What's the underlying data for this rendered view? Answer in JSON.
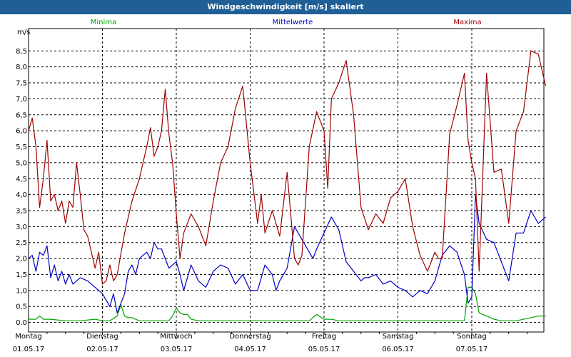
{
  "window": {
    "title": "Windgeschwindigkeit [m/s] skaliert"
  },
  "chart_data": {
    "type": "line",
    "title": "Windgeschwindigkeit [m/s] skaliert",
    "ylabel": "m/s",
    "ylim": [
      -0.3,
      9.2
    ],
    "grid": true,
    "legend_placement": "top",
    "y_ticks": [
      "0.0",
      "0,5",
      "1,0",
      "1,5",
      "2,0",
      "2,5",
      "3,0",
      "3,5",
      "4,0",
      "4,5",
      "5,0",
      "5,5",
      "6,0",
      "6,5",
      "7,0",
      "7,5",
      "8,0",
      "8,5"
    ],
    "y_tick_values": [
      0,
      0.5,
      1,
      1.5,
      2,
      2.5,
      3,
      3.5,
      4,
      4.5,
      5,
      5.5,
      6,
      6.5,
      7,
      7.5,
      8,
      8.5
    ],
    "x_ticks": [
      {
        "day": "Montag",
        "date": "01.05.17"
      },
      {
        "day": "Dienstag",
        "date": "02.05.17"
      },
      {
        "day": "Mittwoch",
        "date": "03.05.17"
      },
      {
        "day": "Donnerstag",
        "date": "04.05.17"
      },
      {
        "day": "Freitag",
        "date": "05.05.17"
      },
      {
        "day": "Samstag",
        "date": "06.05.17"
      },
      {
        "day": "Sonntag",
        "date": "07.05.17"
      }
    ],
    "x_range_days": [
      0,
      7
    ],
    "series": [
      {
        "name": "Minima",
        "color": "#00a000",
        "x": [
          0,
          0.05,
          0.1,
          0.15,
          0.2,
          0.3,
          0.5,
          0.7,
          0.9,
          1.0,
          1.1,
          1.2,
          1.25,
          1.3,
          1.35,
          1.4,
          1.5,
          1.6,
          1.7,
          1.8,
          1.9,
          1.95,
          2.0,
          2.05,
          2.1,
          2.15,
          2.2,
          2.3,
          2.4,
          2.6,
          2.8,
          3.0,
          3.2,
          3.4,
          3.6,
          3.8,
          3.9,
          4.0,
          4.1,
          4.2,
          4.4,
          4.6,
          4.8,
          5.0,
          5.2,
          5.4,
          5.6,
          5.8,
          5.9,
          5.95,
          6.0,
          6.05,
          6.1,
          6.15,
          6.2,
          6.3,
          6.4,
          6.6,
          6.8,
          6.9,
          7.0
        ],
        "y": [
          0.1,
          0.1,
          0.1,
          0.2,
          0.1,
          0.1,
          0.05,
          0.05,
          0.1,
          0.05,
          0.05,
          0.2,
          0.55,
          0.2,
          0.15,
          0.15,
          0.05,
          0.05,
          0.05,
          0.05,
          0.05,
          0.2,
          0.45,
          0.3,
          0.25,
          0.25,
          0.1,
          0.05,
          0.05,
          0.05,
          0.05,
          0.05,
          0.05,
          0.05,
          0.05,
          0.05,
          0.25,
          0.1,
          0.1,
          0.05,
          0.05,
          0.05,
          0.05,
          0.05,
          0.05,
          0.05,
          0.05,
          0.05,
          0.05,
          1.1,
          1.1,
          0.9,
          0.3,
          0.25,
          0.2,
          0.1,
          0.05,
          0.05,
          0.15,
          0.2,
          0.2
        ]
      },
      {
        "name": "Mittelwerte",
        "color": "#0000c8",
        "x": [
          0,
          0.05,
          0.1,
          0.15,
          0.2,
          0.25,
          0.3,
          0.35,
          0.4,
          0.45,
          0.5,
          0.55,
          0.6,
          0.7,
          0.8,
          0.9,
          1.0,
          1.05,
          1.1,
          1.15,
          1.2,
          1.25,
          1.3,
          1.35,
          1.4,
          1.45,
          1.5,
          1.55,
          1.6,
          1.65,
          1.7,
          1.75,
          1.8,
          1.9,
          2.0,
          2.05,
          2.1,
          2.2,
          2.3,
          2.4,
          2.5,
          2.6,
          2.7,
          2.8,
          2.9,
          3.0,
          3.1,
          3.2,
          3.3,
          3.35,
          3.4,
          3.5,
          3.6,
          3.7,
          3.8,
          3.85,
          3.9,
          4.0,
          4.1,
          4.2,
          4.3,
          4.4,
          4.5,
          4.55,
          4.6,
          4.7,
          4.8,
          4.9,
          5.0,
          5.1,
          5.2,
          5.3,
          5.4,
          5.5,
          5.6,
          5.7,
          5.8,
          5.9,
          5.95,
          6.0,
          6.05,
          6.1,
          6.2,
          6.3,
          6.4,
          6.5,
          6.6,
          6.7,
          6.8,
          6.9,
          7.0
        ],
        "y": [
          2.0,
          2.1,
          1.6,
          2.2,
          2.1,
          2.4,
          1.4,
          1.8,
          1.3,
          1.6,
          1.2,
          1.5,
          1.2,
          1.4,
          1.3,
          1.1,
          0.9,
          0.7,
          0.5,
          0.9,
          0.3,
          0.6,
          0.9,
          1.6,
          1.8,
          1.5,
          2.0,
          2.1,
          2.2,
          2.0,
          2.5,
          2.3,
          2.3,
          1.7,
          1.9,
          1.5,
          1.0,
          1.8,
          1.3,
          1.1,
          1.6,
          1.8,
          1.7,
          1.2,
          1.5,
          1.0,
          1.0,
          1.8,
          1.5,
          1.0,
          1.3,
          1.7,
          3.0,
          2.6,
          2.2,
          2.0,
          2.3,
          2.8,
          3.3,
          2.9,
          1.9,
          1.6,
          1.3,
          1.4,
          1.4,
          1.5,
          1.2,
          1.3,
          1.1,
          1.0,
          0.8,
          1.0,
          0.9,
          1.3,
          2.1,
          2.4,
          2.2,
          1.5,
          0.6,
          0.8,
          4.0,
          3.1,
          2.6,
          2.5,
          1.9,
          1.3,
          2.8,
          2.8,
          3.5,
          3.1,
          3.3
        ]
      },
      {
        "name": "Maxima",
        "color": "#a00000",
        "x": [
          0,
          0.05,
          0.1,
          0.15,
          0.2,
          0.25,
          0.3,
          0.35,
          0.4,
          0.45,
          0.5,
          0.55,
          0.6,
          0.65,
          0.7,
          0.75,
          0.8,
          0.9,
          0.95,
          1.0,
          1.05,
          1.1,
          1.15,
          1.2,
          1.3,
          1.4,
          1.5,
          1.55,
          1.6,
          1.65,
          1.7,
          1.75,
          1.8,
          1.85,
          1.9,
          1.95,
          2.0,
          2.05,
          2.1,
          2.2,
          2.3,
          2.4,
          2.5,
          2.6,
          2.7,
          2.8,
          2.9,
          3.0,
          3.1,
          3.15,
          3.2,
          3.3,
          3.4,
          3.5,
          3.6,
          3.65,
          3.7,
          3.8,
          3.9,
          4.0,
          4.05,
          4.1,
          4.2,
          4.3,
          4.4,
          4.5,
          4.6,
          4.7,
          4.8,
          4.9,
          5.0,
          5.1,
          5.2,
          5.3,
          5.4,
          5.5,
          5.55,
          5.6,
          5.7,
          5.8,
          5.9,
          5.95,
          6.0,
          6.05,
          6.1,
          6.2,
          6.3,
          6.4,
          6.5,
          6.6,
          6.7,
          6.8,
          6.9,
          7.0
        ],
        "y": [
          6.0,
          6.4,
          5.5,
          3.6,
          4.5,
          5.7,
          3.8,
          4.0,
          3.5,
          3.8,
          3.1,
          3.8,
          3.6,
          5.0,
          4.0,
          2.9,
          2.7,
          1.7,
          2.2,
          1.2,
          1.3,
          1.8,
          1.3,
          1.5,
          2.8,
          3.8,
          4.5,
          5.0,
          5.5,
          6.1,
          5.2,
          5.5,
          6.0,
          7.3,
          5.9,
          5.0,
          3.4,
          2.0,
          2.8,
          3.4,
          3.0,
          2.4,
          3.8,
          5.0,
          5.5,
          6.7,
          7.4,
          5.0,
          3.1,
          4.0,
          2.8,
          3.5,
          2.7,
          4.7,
          2.0,
          1.8,
          2.1,
          5.5,
          6.6,
          6.0,
          4.2,
          7.0,
          7.5,
          8.2,
          6.5,
          3.6,
          2.9,
          3.4,
          3.1,
          3.9,
          4.1,
          4.5,
          3.0,
          2.1,
          1.6,
          2.2,
          2.0,
          2.0,
          5.9,
          6.8,
          7.8,
          5.7,
          5.0,
          4.5,
          1.6,
          7.8,
          4.7,
          4.8,
          3.1,
          6.0,
          6.6,
          8.5,
          8.4,
          7.4
        ]
      }
    ]
  }
}
